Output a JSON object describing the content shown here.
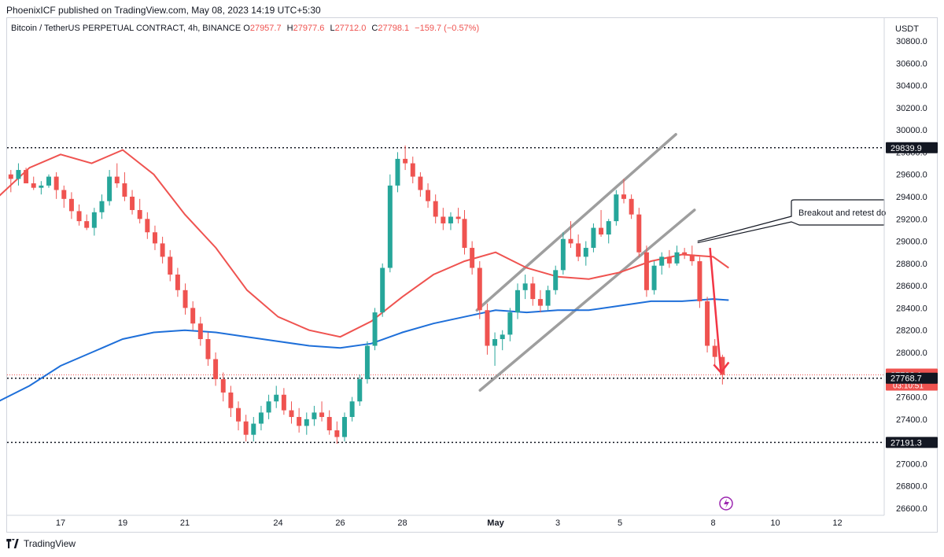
{
  "publish_line": "PhoenixICF published on TradingView.com, May 08, 2023 14:19 UTC+5:30",
  "legend": {
    "symbol": "Bitcoin / TetherUS PERPETUAL CONTRACT, 4h, BINANCE",
    "o_label": "O",
    "o": "27957.7",
    "h_label": "H",
    "h": "27977.6",
    "l_label": "L",
    "l": "27712.0",
    "c_label": "C",
    "c": "27798.1",
    "change": "−159.7 (−0.57%)"
  },
  "footer_brand": "TradingView",
  "annotation_text": "Breakout and retest do",
  "colors": {
    "up": "#26a69a",
    "down": "#ef5350",
    "ma_fast": "#ef5350",
    "ma_slow": "#1e6fd9",
    "channel": "#9e9e9e",
    "arrow": "#f23645"
  },
  "chart_data": {
    "type": "candlestick",
    "axis_currency": "USDT",
    "ylim": [
      26600,
      30800
    ],
    "y_ticks": [
      30800,
      30600,
      30400,
      30200,
      30000,
      29800,
      29600,
      29400,
      29200,
      29000,
      28800,
      28600,
      28400,
      28200,
      28000,
      27800,
      27600,
      27400,
      27200,
      27000,
      26800,
      26600
    ],
    "x_ticks": [
      {
        "label": "17",
        "day": 17
      },
      {
        "label": "19",
        "day": 19
      },
      {
        "label": "21",
        "day": 21
      },
      {
        "label": "24",
        "day": 24
      },
      {
        "label": "26",
        "day": 26
      },
      {
        "label": "28",
        "day": 28
      },
      {
        "label": "May",
        "day": 31
      },
      {
        "label": "3",
        "day": 33
      },
      {
        "label": "5",
        "day": 35
      },
      {
        "label": "8",
        "day": 38
      },
      {
        "label": "10",
        "day": 40
      },
      {
        "label": "12",
        "day": 42
      }
    ],
    "price_labels": [
      {
        "value": 29839.9,
        "label": "29839.9",
        "kind": "level"
      },
      {
        "value": 27798.1,
        "label": "27798.1",
        "kind": "last",
        "countdown": "03:10:51"
      },
      {
        "value": 27768.7,
        "label": "27768.7",
        "kind": "level"
      },
      {
        "value": 27191.3,
        "label": "27191.3",
        "kind": "level"
      }
    ],
    "horizontal_levels": [
      29839.9,
      27768.7,
      27191.3
    ],
    "candles": [
      [
        29600,
        29640,
        29440,
        29560
      ],
      [
        29560,
        29700,
        29500,
        29640
      ],
      [
        29640,
        29660,
        29520,
        29520
      ],
      [
        29520,
        29580,
        29460,
        29480
      ],
      [
        29480,
        29540,
        29420,
        29500
      ],
      [
        29500,
        29600,
        29480,
        29580
      ],
      [
        29580,
        29620,
        29380,
        29460
      ],
      [
        29460,
        29500,
        29300,
        29380
      ],
      [
        29380,
        29440,
        29200,
        29270
      ],
      [
        29270,
        29330,
        29140,
        29180
      ],
      [
        29180,
        29240,
        29100,
        29120
      ],
      [
        29120,
        29300,
        29050,
        29260
      ],
      [
        29260,
        29420,
        29200,
        29360
      ],
      [
        29360,
        29640,
        29320,
        29580
      ],
      [
        29580,
        29700,
        29480,
        29520
      ],
      [
        29520,
        29620,
        29360,
        29400
      ],
      [
        29400,
        29460,
        29240,
        29280
      ],
      [
        29280,
        29380,
        29160,
        29200
      ],
      [
        29200,
        29260,
        29020,
        29080
      ],
      [
        29080,
        29140,
        28920,
        28980
      ],
      [
        28980,
        29040,
        28800,
        28860
      ],
      [
        28860,
        28920,
        28640,
        28700
      ],
      [
        28700,
        28760,
        28500,
        28560
      ],
      [
        28560,
        28620,
        28340,
        28400
      ],
      [
        28400,
        28460,
        28200,
        28260
      ],
      [
        28260,
        28320,
        28060,
        28120
      ],
      [
        28120,
        28180,
        27880,
        27940
      ],
      [
        27940,
        28000,
        27700,
        27760
      ],
      [
        27760,
        27820,
        27560,
        27640
      ],
      [
        27640,
        27700,
        27420,
        27500
      ],
      [
        27500,
        27560,
        27300,
        27380
      ],
      [
        27380,
        27440,
        27200,
        27260
      ],
      [
        27260,
        27420,
        27200,
        27360
      ],
      [
        27360,
        27520,
        27300,
        27460
      ],
      [
        27460,
        27620,
        27400,
        27560
      ],
      [
        27560,
        27700,
        27500,
        27620
      ],
      [
        27620,
        27680,
        27440,
        27480
      ],
      [
        27480,
        27560,
        27360,
        27420
      ],
      [
        27420,
        27500,
        27280,
        27340
      ],
      [
        27340,
        27460,
        27260,
        27400
      ],
      [
        27400,
        27520,
        27340,
        27460
      ],
      [
        27460,
        27560,
        27380,
        27420
      ],
      [
        27420,
        27480,
        27260,
        27300
      ],
      [
        27300,
        27380,
        27180,
        27240
      ],
      [
        27240,
        27460,
        27200,
        27420
      ],
      [
        27420,
        27600,
        27380,
        27560
      ],
      [
        27560,
        27800,
        27520,
        27760
      ],
      [
        27760,
        28100,
        27720,
        28060
      ],
      [
        28060,
        28400,
        28020,
        28360
      ],
      [
        28360,
        28800,
        28320,
        28760
      ],
      [
        28760,
        29600,
        28720,
        29500
      ],
      [
        29500,
        29800,
        29440,
        29740
      ],
      [
        29740,
        29860,
        29640,
        29700
      ],
      [
        29700,
        29760,
        29520,
        29580
      ],
      [
        29580,
        29620,
        29400,
        29460
      ],
      [
        29460,
        29520,
        29300,
        29360
      ],
      [
        29360,
        29420,
        29160,
        29220
      ],
      [
        29220,
        29300,
        29100,
        29160
      ],
      [
        29160,
        29260,
        29100,
        29220
      ],
      [
        29220,
        29300,
        29160,
        29200
      ]
    ],
    "candle_x_start_day": 15.4,
    "candle_x_end_day": 29.8,
    "candles2": [
      [
        29200,
        29280,
        28880,
        28940
      ],
      [
        28940,
        29000,
        28700,
        28760
      ],
      [
        28760,
        28820,
        28300,
        28380
      ],
      [
        28380,
        28440,
        27980,
        28060
      ],
      [
        28060,
        28180,
        27880,
        28120
      ],
      [
        28120,
        28200,
        28020,
        28160
      ],
      [
        28160,
        28400,
        28100,
        28360
      ],
      [
        28360,
        28620,
        28300,
        28560
      ],
      [
        28560,
        28700,
        28480,
        28620
      ],
      [
        28620,
        28680,
        28420,
        28480
      ],
      [
        28480,
        28560,
        28360,
        28420
      ],
      [
        28420,
        28600,
        28380,
        28560
      ],
      [
        28560,
        28780,
        28520,
        28740
      ],
      [
        28740,
        29080,
        28700,
        29020
      ],
      [
        29020,
        29180,
        28940,
        28980
      ],
      [
        28980,
        29060,
        28820,
        28860
      ],
      [
        28860,
        29000,
        28780,
        28940
      ],
      [
        28940,
        29160,
        28900,
        29120
      ],
      [
        29120,
        29280,
        29040,
        29060
      ],
      [
        29060,
        29200,
        28980,
        29180
      ],
      [
        29180,
        29460,
        29140,
        29420
      ],
      [
        29420,
        29560,
        29340,
        29380
      ],
      [
        29380,
        29420,
        29200,
        29240
      ],
      [
        29240,
        29300,
        28860,
        28900
      ],
      [
        28900,
        28960,
        28500,
        28560
      ],
      [
        28560,
        28820,
        28520,
        28780
      ],
      [
        28780,
        28900,
        28700,
        28860
      ],
      [
        28860,
        28920,
        28760,
        28800
      ],
      [
        28800,
        28960,
        28780,
        28900
      ],
      [
        28900,
        28940,
        28840,
        28880
      ],
      [
        28880,
        28960,
        28780,
        28820
      ],
      [
        28820,
        28860,
        28400,
        28460
      ],
      [
        28460,
        28500,
        28000,
        28060
      ],
      [
        28060,
        28120,
        27880,
        27960
      ],
      [
        27960,
        27980,
        27712,
        27798
      ]
    ],
    "candles2_x_start_day": 30.0,
    "candles2_x_end_day": 38.3,
    "series": [
      {
        "name": "",
        "kind": "ma_fast",
        "points": [
          [
            15,
            29400
          ],
          [
            16,
            29660
          ],
          [
            17,
            29780
          ],
          [
            18,
            29700
          ],
          [
            19,
            29820
          ],
          [
            20,
            29600
          ],
          [
            21,
            29240
          ],
          [
            22,
            28940
          ],
          [
            23,
            28560
          ],
          [
            24,
            28320
          ],
          [
            25,
            28200
          ],
          [
            26,
            28140
          ],
          [
            27,
            28280
          ],
          [
            28,
            28500
          ],
          [
            29,
            28700
          ],
          [
            30,
            28820
          ],
          [
            31,
            28900
          ],
          [
            32,
            28760
          ],
          [
            33,
            28680
          ],
          [
            34,
            28660
          ],
          [
            35,
            28720
          ],
          [
            36,
            28820
          ],
          [
            37,
            28880
          ],
          [
            38,
            28860
          ],
          [
            38.5,
            28760
          ]
        ]
      },
      {
        "name": "",
        "kind": "ma_slow",
        "points": [
          [
            15,
            27560
          ],
          [
            16,
            27700
          ],
          [
            17,
            27880
          ],
          [
            18,
            28000
          ],
          [
            19,
            28120
          ],
          [
            20,
            28180
          ],
          [
            21,
            28200
          ],
          [
            22,
            28180
          ],
          [
            23,
            28140
          ],
          [
            24,
            28100
          ],
          [
            25,
            28060
          ],
          [
            26,
            28040
          ],
          [
            27,
            28080
          ],
          [
            28,
            28180
          ],
          [
            29,
            28260
          ],
          [
            30,
            28320
          ],
          [
            31,
            28380
          ],
          [
            32,
            28360
          ],
          [
            33,
            28380
          ],
          [
            34,
            28380
          ],
          [
            35,
            28420
          ],
          [
            36,
            28460
          ],
          [
            37,
            28460
          ],
          [
            38,
            28480
          ],
          [
            38.5,
            28470
          ]
        ]
      }
    ],
    "channel_lines": [
      {
        "from": [
          30.4,
          28380
        ],
        "to": [
          36.8,
          29960
        ]
      },
      {
        "from": [
          30.5,
          27660
        ],
        "to": [
          37.4,
          29280
        ]
      }
    ],
    "annotation_anchor": {
      "day": 37.5,
      "price": 29000
    }
  }
}
